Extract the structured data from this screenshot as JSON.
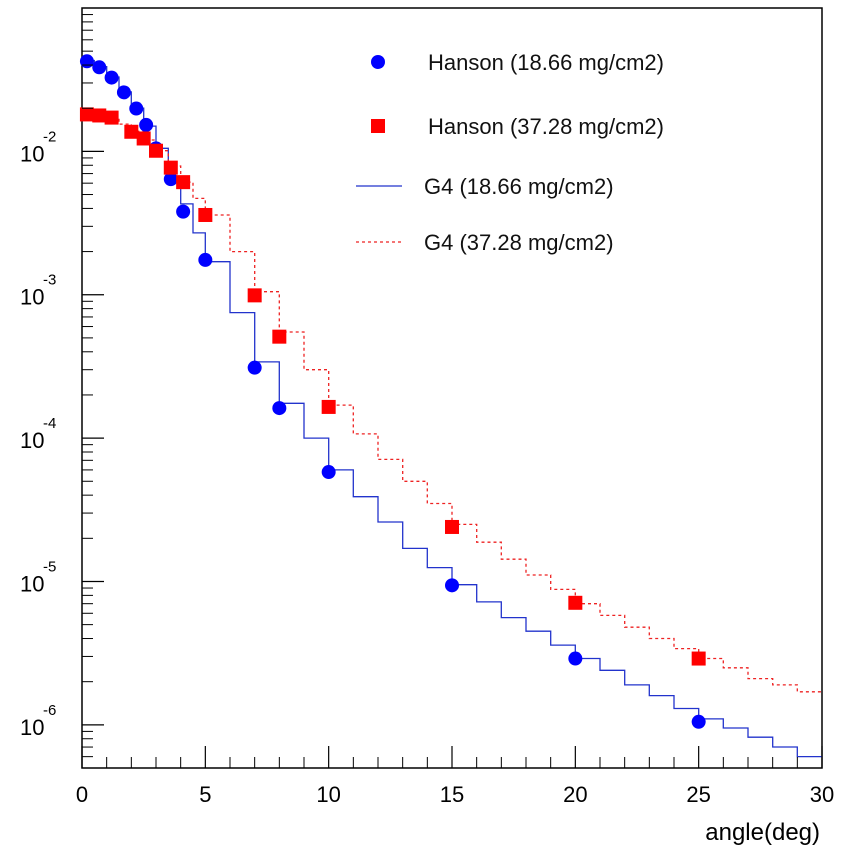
{
  "chart_data": {
    "type": "scatter",
    "x_label": "angle(deg)",
    "y_scale": "log",
    "x_range": [
      0,
      30
    ],
    "y_range": [
      5e-07,
      0.1
    ],
    "x_ticks": [
      "0",
      "5",
      "10",
      "15",
      "20",
      "25",
      "30"
    ],
    "y_ticks": [
      {
        "value": 0.01,
        "base": "10",
        "exp": "-2"
      },
      {
        "value": 0.001,
        "base": "10",
        "exp": "-3"
      },
      {
        "value": 0.0001,
        "base": "10",
        "exp": "-4"
      },
      {
        "value": 1e-05,
        "base": "10",
        "exp": "-5"
      },
      {
        "value": 1e-06,
        "base": "10",
        "exp": "-6"
      }
    ],
    "grid": false,
    "legend_position": "top-right",
    "series": [
      {
        "name": "Hanson (18.66 mg/cm2)",
        "kind": "points",
        "marker": "circle",
        "color": "#0000ff",
        "x": [
          0.2,
          0.7,
          1.2,
          1.7,
          2.2,
          2.6,
          3.0,
          3.6,
          4.1,
          5.0,
          7.0,
          8.0,
          10.0,
          15.0,
          20.0,
          25.0
        ],
        "y": [
          0.0425,
          0.0386,
          0.0327,
          0.0258,
          0.0199,
          0.0153,
          0.0105,
          0.0064,
          0.0038,
          0.00175,
          0.00031,
          0.000162,
          5.8e-05,
          9.4e-06,
          2.9e-06,
          1.05e-06
        ]
      },
      {
        "name": "Hanson (37.28 mg/cm2)",
        "kind": "points",
        "marker": "square",
        "color": "#ff0000",
        "x": [
          0.2,
          0.7,
          1.2,
          2.0,
          2.5,
          3.0,
          3.6,
          4.1,
          5.0,
          7.0,
          8.0,
          10.0,
          15.0,
          20.0,
          25.0
        ],
        "y": [
          0.0181,
          0.0178,
          0.0172,
          0.0137,
          0.0123,
          0.0101,
          0.0077,
          0.0061,
          0.0036,
          0.00099,
          0.00051,
          0.000165,
          2.4e-05,
          7.1e-06,
          2.9e-06
        ]
      },
      {
        "name": "G4 (18.66 mg/cm2)",
        "kind": "histogram",
        "line": "solid",
        "color": "#2233cc",
        "x": [
          0,
          0.5,
          1,
          1.5,
          2,
          2.5,
          3,
          3.5,
          4,
          4.5,
          5,
          6,
          7,
          8,
          9,
          10,
          11,
          12,
          13,
          14,
          15,
          16,
          17,
          18,
          19,
          20,
          21,
          22,
          23,
          24,
          25,
          26,
          27,
          28,
          29,
          30
        ],
        "y": [
          0.043,
          0.039,
          0.033,
          0.026,
          0.02,
          0.015,
          0.0105,
          0.0067,
          0.0043,
          0.0027,
          0.0017,
          0.00075,
          0.00034,
          0.000175,
          0.0001,
          6e-05,
          3.9e-05,
          2.6e-05,
          1.7e-05,
          1.25e-05,
          9.5e-06,
          7.2e-06,
          5.6e-06,
          4.5e-06,
          3.6e-06,
          2.9e-06,
          2.4e-06,
          1.9e-06,
          1.6e-06,
          1.3e-06,
          1.1e-06,
          9.5e-07,
          8.2e-07,
          7e-07,
          6e-07,
          5.5e-07
        ]
      },
      {
        "name": "G4 (37.28 mg/cm2)",
        "kind": "histogram",
        "line": "dashed",
        "color": "#ee2222",
        "x": [
          0,
          0.5,
          1,
          1.5,
          2,
          2.5,
          3,
          3.5,
          4,
          4.5,
          5,
          6,
          7,
          8,
          9,
          10,
          11,
          12,
          13,
          14,
          15,
          16,
          17,
          18,
          19,
          20,
          21,
          22,
          23,
          24,
          25,
          26,
          27,
          28,
          29,
          30
        ],
        "y": [
          0.0183,
          0.0179,
          0.0172,
          0.0155,
          0.0138,
          0.012,
          0.0101,
          0.0079,
          0.0061,
          0.0047,
          0.0036,
          0.002,
          0.00105,
          0.00055,
          0.0003,
          0.00017,
          0.000107,
          7.1e-05,
          5e-05,
          3.5e-05,
          2.5e-05,
          1.88e-05,
          1.43e-05,
          1.11e-05,
          8.8e-06,
          7e-06,
          5.8e-06,
          4.8e-06,
          4e-06,
          3.4e-06,
          2.9e-06,
          2.5e-06,
          2.1e-06,
          1.9e-06,
          1.7e-06,
          1.5e-06
        ]
      }
    ]
  }
}
